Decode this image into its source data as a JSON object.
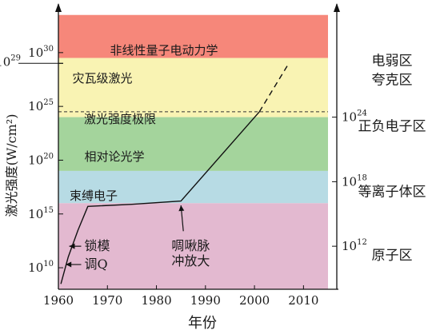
{
  "chart_data": {
    "type": "line",
    "xlabel": "年份",
    "ylabel_left": "激光强度(W/cm²)",
    "xlim": [
      1960,
      2015
    ],
    "ylim_log10": [
      8,
      34
    ],
    "x_ticks": [
      1960,
      1970,
      1980,
      1990,
      2000,
      2010
    ],
    "y_ticks_left": [
      {
        "exp": 10,
        "label": "10",
        "sup": "10"
      },
      {
        "exp": 15,
        "label": "10",
        "sup": "15"
      },
      {
        "exp": 20,
        "label": "10",
        "sup": "20"
      },
      {
        "exp": 25,
        "label": "10",
        "sup": "25"
      },
      {
        "exp": 29,
        "label": "10",
        "sup": "29"
      },
      {
        "exp": 30,
        "label": "10",
        "sup": "30"
      }
    ],
    "y_ticks_right": [
      {
        "exp": 12,
        "label": "10",
        "sup": "12"
      },
      {
        "exp": 18,
        "label": "10",
        "sup": "18"
      },
      {
        "exp": 24,
        "label": "10",
        "sup": "24"
      }
    ],
    "bands": [
      {
        "name": "非线性量子电动力学",
        "from": 29.5,
        "to": 33.5,
        "color": "#f6877a"
      },
      {
        "name": "灾瓦级激光",
        "from": 24,
        "to": 29.5,
        "color": "#f9f3b3"
      },
      {
        "name": "激光强度极限",
        "from": 24,
        "to": 29.5,
        "color": "#f9f3b3"
      },
      {
        "name": "相对论光学",
        "from": 19,
        "to": 24,
        "color": "#a4d49c"
      },
      {
        "name": "束缚电子",
        "from": 16,
        "to": 19,
        "color": "#b7dbe4"
      },
      {
        "name": "",
        "from": 8,
        "to": 16,
        "color": "#e3b9d0"
      }
    ],
    "series": [
      {
        "points": [
          [
            1960.5,
            8.5
          ],
          [
            1962,
            11
          ],
          [
            1964,
            13.5
          ],
          [
            1966,
            15.7
          ],
          [
            1975,
            15.9
          ],
          [
            1985,
            16.2
          ],
          [
            2001,
            24.5
          ]
        ],
        "projection": [
          [
            2001,
            24.5
          ],
          [
            2007,
            29
          ]
        ]
      }
    ],
    "limit_line": {
      "exp": 24.5
    },
    "annotations": [
      {
        "text": "锁模",
        "x": 1965.3,
        "y": 12
      },
      {
        "text": "调Q",
        "x": 1965.3,
        "y": 10.3
      },
      {
        "text": "啁啾脉",
        "x": 1987,
        "y": 12
      },
      {
        "text": "冲放大",
        "x": 1987,
        "y": 10.6
      }
    ],
    "right_labels": [
      {
        "text": "电弱区",
        "y": 29.3
      },
      {
        "text": "夸克区",
        "y": 27.5
      },
      {
        "text": "正负电子区",
        "y": 23.2
      },
      {
        "text": "等离子体区",
        "y": 17.1
      },
      {
        "text": "原子区",
        "y": 11.2
      }
    ]
  }
}
